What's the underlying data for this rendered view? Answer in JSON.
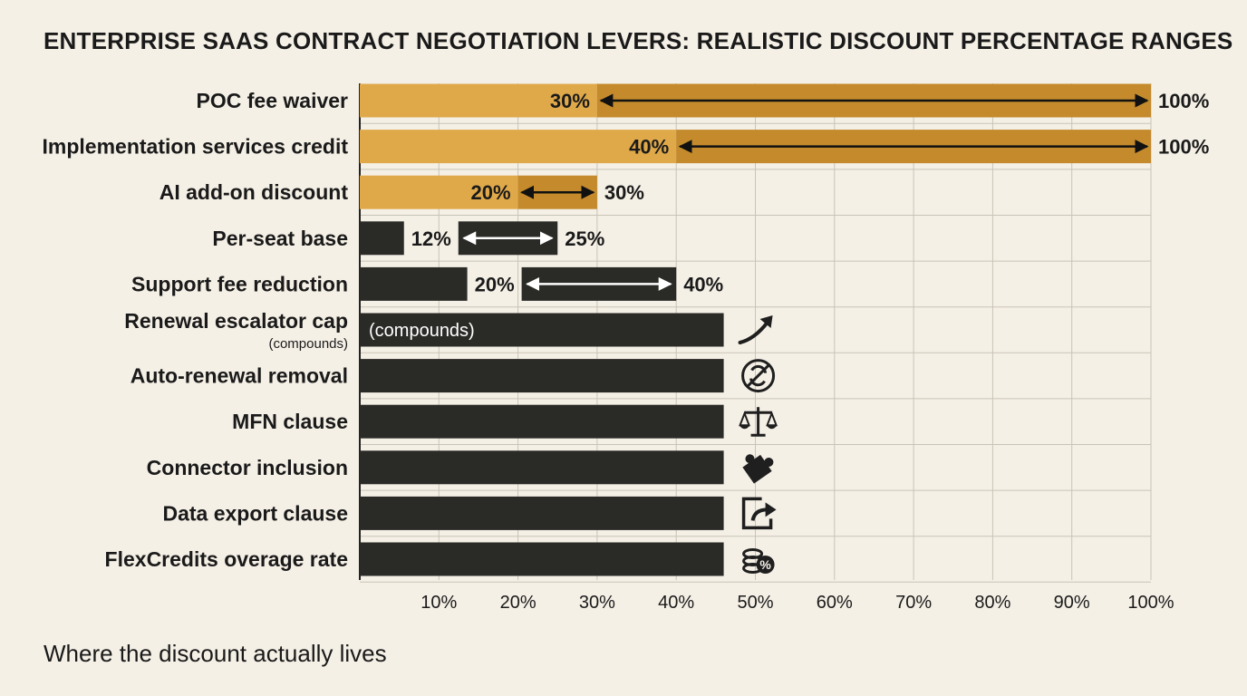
{
  "title": "ENTERPRISE SAAS CONTRACT NEGOTIATION LEVERS: REALISTIC DISCOUNT PERCENTAGE RANGES",
  "caption": "Where the discount actually lives",
  "colors": {
    "background": "#f5f0e6",
    "gold_light": "#dfa94a",
    "gold_dark": "#c48a2c",
    "dark_bar": "#2a2a27",
    "grid": "#c9c3b6",
    "text": "#1a1a1a"
  },
  "chart_data": {
    "type": "bar",
    "title": "ENTERPRISE SAAS CONTRACT NEGOTIATION LEVERS: REALISTIC DISCOUNT PERCENTAGE RANGES",
    "xlabel": "",
    "ylabel": "",
    "xlim": [
      0,
      100
    ],
    "x_ticks": [
      "10%",
      "20%",
      "30%",
      "40%",
      "50%",
      "60%",
      "70%",
      "80%",
      "90%",
      "100%"
    ],
    "grid": true,
    "categories": [
      "POC fee waiver",
      "Implementation services credit",
      "AI add-on discount",
      "Per-seat base",
      "Support fee reduction",
      "Renewal escalator cap",
      "Auto-renewal removal",
      "MFN clause",
      "Connector inclusion",
      "Data export clause",
      "FlexCredits overage rate"
    ],
    "items": [
      {
        "label": "POC fee waiver",
        "style": "range-gold",
        "low": 30,
        "high": 100,
        "low_label": "30%",
        "high_label": "100%"
      },
      {
        "label": "Implementation services credit",
        "style": "range-gold",
        "low": 40,
        "high": 100,
        "low_label": "40%",
        "high_label": "100%"
      },
      {
        "label": "AI add-on discount",
        "style": "range-gold",
        "low": 20,
        "high": 30,
        "low_label": "20%",
        "high_label": "30%"
      },
      {
        "label": "Per-seat base",
        "style": "range-dark",
        "low": 12,
        "high": 25,
        "low_label": "12%",
        "high_label": "25%"
      },
      {
        "label": "Support fee reduction",
        "style": "range-dark",
        "low": 20,
        "high": 40,
        "low_label": "20%",
        "high_label": "40%"
      },
      {
        "label": "Renewal escalator cap",
        "sublabel": "(compounds)",
        "style": "block",
        "value": 46,
        "bar_text": "(compounds)",
        "icon": "upward-trend-arrow-icon"
      },
      {
        "label": "Auto-renewal removal",
        "style": "block",
        "value": 46,
        "icon": "no-renewal-icon"
      },
      {
        "label": "MFN clause",
        "style": "block",
        "value": 46,
        "icon": "balance-scale-icon"
      },
      {
        "label": "Connector inclusion",
        "style": "block",
        "value": 46,
        "icon": "puzzle-piece-icon"
      },
      {
        "label": "Data export clause",
        "style": "block",
        "value": 46,
        "icon": "export-icon"
      },
      {
        "label": "FlexCredits overage rate",
        "style": "block",
        "value": 46,
        "icon": "coins-percent-icon"
      }
    ]
  }
}
